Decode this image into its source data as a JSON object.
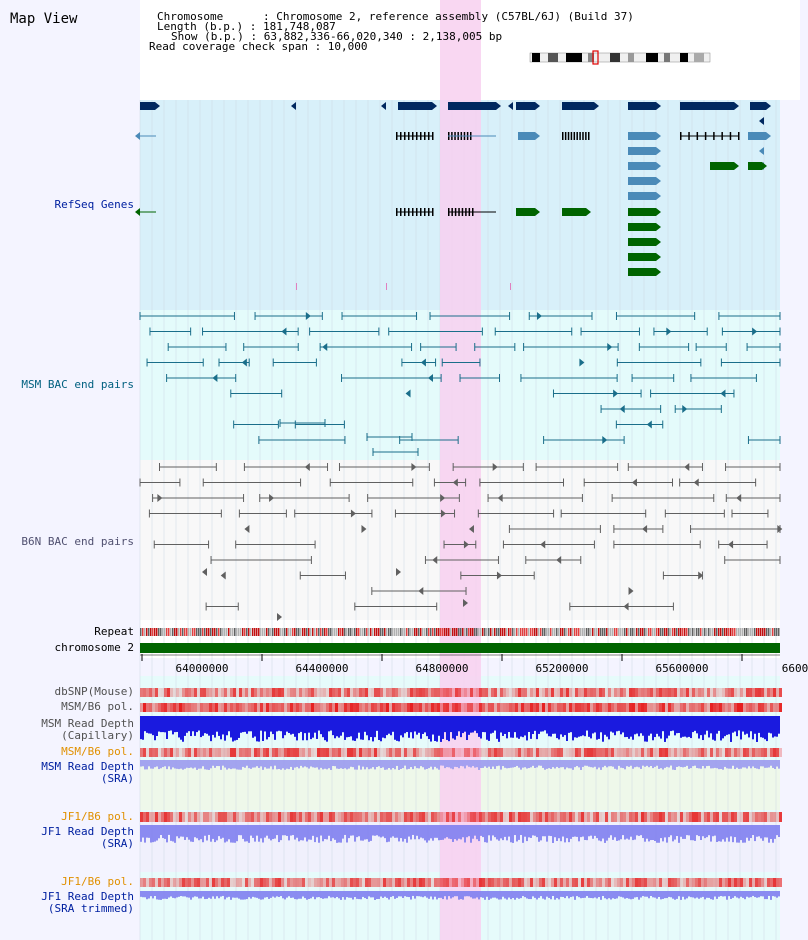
{
  "app": {
    "title": "Map View"
  },
  "header": {
    "chromosome": "Chromosome      : Chromosome 2, reference assembly (C57BL/6J) (Build 37)",
    "length": "Length (b.p.) : 181,748,087",
    "show": "Show (b.p.) : 63,882,336-66,020,340 : 2,138,005 bp",
    "coverage": "Read coverage check span : 10,000"
  },
  "tracks": {
    "refseq": "RefSeq Genes",
    "msm_bac": "MSM BAC end pairs",
    "b6n_bac": "B6N BAC end pairs",
    "repeat": "Repeat",
    "chromosome": "chromosome 2",
    "dbsnp": "dbSNP(Mouse)",
    "msm_b6_pol_1": "MSM/B6 pol.",
    "msm_read_cap_1": "MSM Read Depth",
    "msm_read_cap_2": "(Capillary)",
    "msm_b6_pol_2": "MSM/B6 pol.",
    "msm_read_sra_1": "MSM Read Depth",
    "msm_read_sra_2": "(SRA)",
    "jf1_b6_pol_1": "JF1/B6 pol.",
    "jf1_read_sra_1": "JF1 Read Depth",
    "jf1_read_sra_2": "(SRA)",
    "jf1_b6_pol_2": "JF1/B6 pol.",
    "jf1_read_trim_1": "JF1 Read Depth",
    "jf1_read_trim_2": "(SRA trimmed)"
  },
  "axis": {
    "ticks": [
      "64000000",
      "64400000",
      "64800000",
      "65200000",
      "65600000",
      "6600"
    ]
  },
  "colors": {
    "navy": "#002860",
    "gene_blue": "#4a8ab8",
    "gene_green": "#006400",
    "msm_line": "#1a6e8a",
    "b6n_line": "#606060",
    "highlight": "#f8d0f0",
    "refseq_bg": "#d8f0fa",
    "msm_bg": "#e4fbfb",
    "b6n_bg": "#f8f8f8",
    "depth_blue": "#1a1adf",
    "depth_lightblue": "#8080f0",
    "pol_red": "#e01818"
  }
}
